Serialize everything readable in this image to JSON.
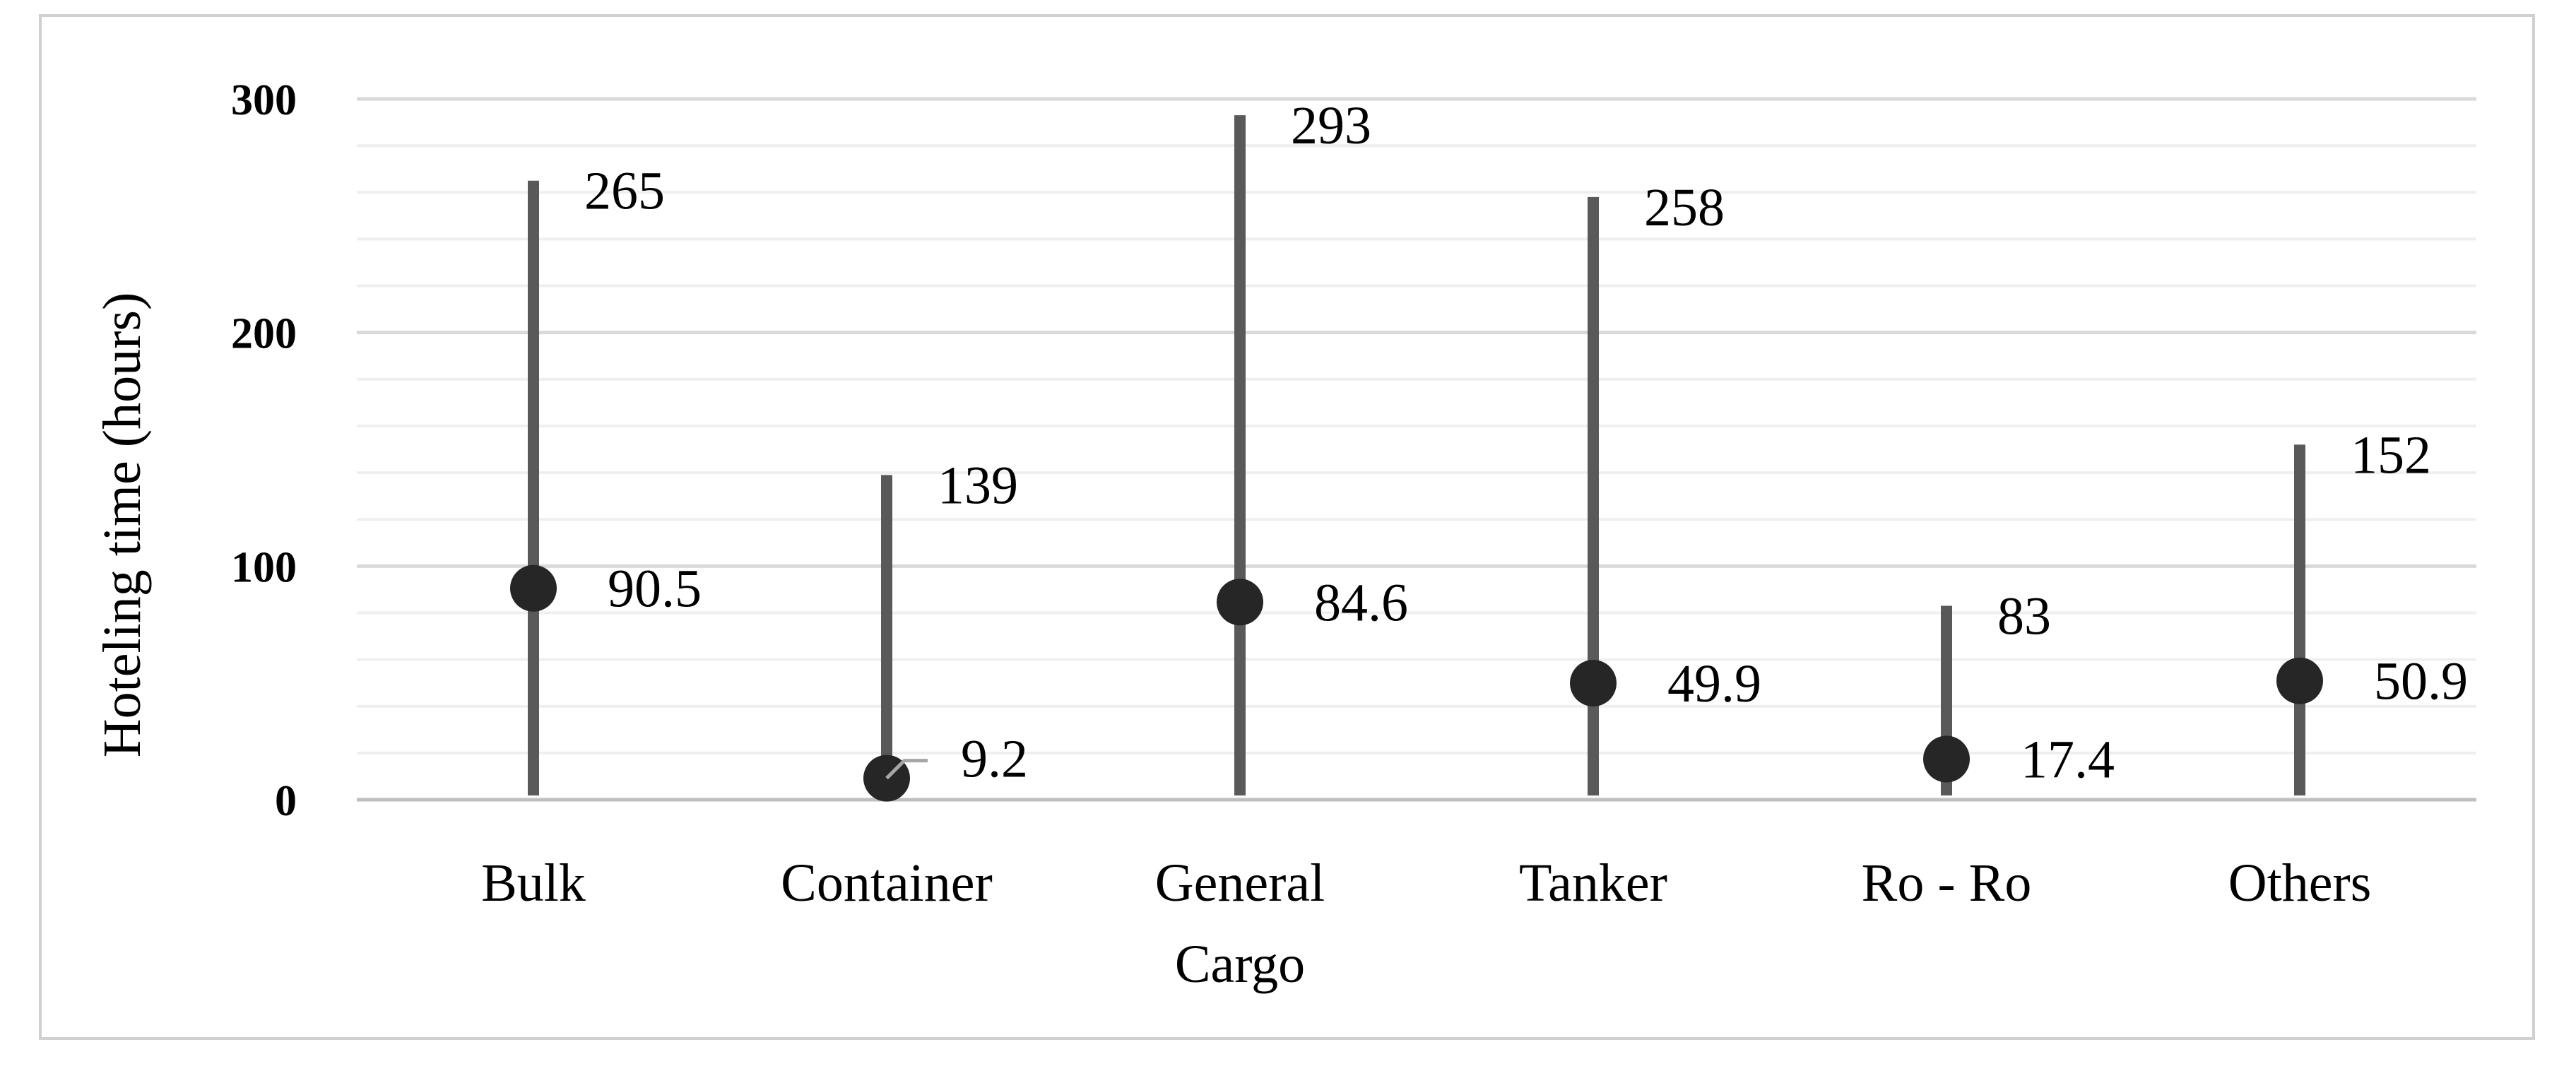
{
  "chart_data": {
    "type": "range-dot",
    "title": "",
    "xlabel": "",
    "ylabel": "Hoteling time (hours)",
    "ylim": [
      0,
      300
    ],
    "yticks": [
      0,
      100,
      200,
      300
    ],
    "yticks_labels": [
      "0",
      "100",
      "200",
      "300"
    ],
    "grid": true,
    "minor_grid_step": 20,
    "categories": [
      [
        "Bulk"
      ],
      [
        "Container"
      ],
      [
        "General",
        "Cargo"
      ],
      [
        "Tanker"
      ],
      [
        "Ro - Ro"
      ],
      [
        "Others"
      ]
    ],
    "series": [
      {
        "name": "",
        "role": "max",
        "values": [
          265,
          139,
          293,
          258,
          83,
          152
        ],
        "labels": [
          "265",
          "139",
          "293",
          "258",
          "83",
          "152"
        ]
      },
      {
        "name": "",
        "role": "mean",
        "values": [
          90.5,
          9.2,
          84.6,
          49.9,
          17.4,
          50.9
        ],
        "labels": [
          "90.5",
          "9.2",
          "84.6",
          "49.9",
          "17.4",
          "50.9"
        ]
      }
    ],
    "colors": {
      "range_line": "#595959",
      "marker": "#262626",
      "grid_major": "#d9d9d9",
      "grid_minor": "#efefef",
      "axis": "#bfbfbf",
      "leader": "#a6a6a6"
    }
  }
}
